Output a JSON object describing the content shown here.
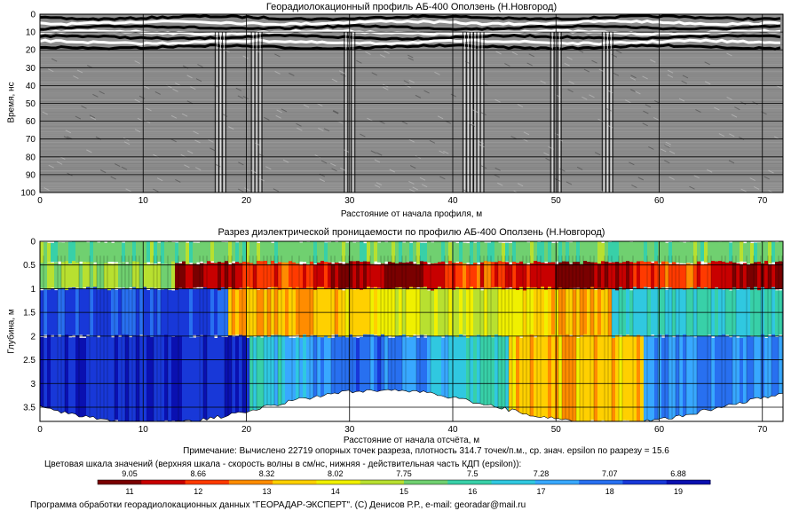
{
  "chart_data": [
    {
      "type": "heatmap",
      "title": "Георадиолокационный профиль  АБ-400 Оползень (Н.Новгород)",
      "xlabel": "Расстояние от начала профиля, м",
      "ylabel": "Время, нс",
      "xlim": [
        0,
        72
      ],
      "ylim": [
        0,
        100
      ],
      "x_ticks": [
        "0",
        "10",
        "20",
        "30",
        "40",
        "50",
        "60",
        "70"
      ],
      "y_ticks": [
        "0",
        "10",
        "20",
        "30",
        "40",
        "50",
        "60",
        "70",
        "80",
        "90",
        "100"
      ],
      "y_inverted": true,
      "grid": true,
      "colors": {
        "positive": "#000000",
        "negative": "#ffffff",
        "background": "#8c8c8c"
      }
    },
    {
      "type": "heatmap",
      "title": "Разрез диэлектрической проницаемости по профилю АБ-400 Оползень (Н.Новгород)",
      "xlabel": "Расстояние от начала отсчёта, м",
      "ylabel": "Глубина, м",
      "xlim": [
        0,
        72
      ],
      "ylim": [
        0,
        3.8
      ],
      "x_ticks": [
        "0",
        "10",
        "20",
        "30",
        "40",
        "50",
        "60",
        "70"
      ],
      "y_ticks": [
        "0",
        "0.5",
        "1",
        "1.5",
        "2",
        "2.5",
        "3",
        "3.5"
      ],
      "y_inverted": true,
      "grid": true,
      "colors": {
        "grid": "#000000"
      }
    }
  ],
  "note": "Примечание: Вычислено 22719 опорных точек разреза, плотность 314.7 точек/п.м., ср. знач. epsilon по разрезу = 15.6",
  "scale": {
    "caption": "Цветовая шкала значений (верхняя шкала - скорость волны в см/нс, нижняя - действительная часть КДП (epsilon)):",
    "velocity_labels": [
      "9.05",
      "8.66",
      "8.32",
      "8.02",
      "7.75",
      "7.5",
      "7.28",
      "7.07",
      "6.88"
    ],
    "epsilon_labels": [
      "11",
      "12",
      "13",
      "14",
      "15",
      "16",
      "17",
      "18",
      "19"
    ],
    "colors": [
      "#7a0000",
      "#c80000",
      "#ff3a00",
      "#ff8c00",
      "#ffd000",
      "#f0f000",
      "#b8e030",
      "#70d070",
      "#38d0a8",
      "#30c8e0",
      "#38a8ff",
      "#2870f0",
      "#1838d8",
      "#0a10b0"
    ]
  },
  "footer": "Программа обработки георадиолокационных данных \"ГЕОРАДАР-ЭКСПЕРТ\". (С) Денисов Р.Р., e-mail: georadar@mail.ru"
}
